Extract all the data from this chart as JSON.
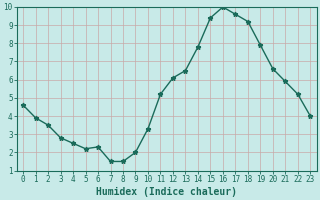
{
  "x": [
    0,
    1,
    2,
    3,
    4,
    5,
    6,
    7,
    8,
    9,
    10,
    11,
    12,
    13,
    14,
    15,
    16,
    17,
    18,
    19,
    20,
    21,
    22,
    23
  ],
  "y": [
    4.6,
    3.9,
    3.5,
    2.8,
    2.5,
    2.2,
    2.3,
    1.5,
    1.5,
    2.0,
    3.3,
    5.2,
    6.1,
    6.5,
    7.8,
    9.4,
    10.0,
    9.6,
    9.2,
    7.9,
    6.6,
    5.9,
    5.2,
    4.0
  ],
  "line_color": "#1a6b5a",
  "marker": "*",
  "marker_size": 3.5,
  "xlabel": "Humidex (Indice chaleur)",
  "bg_color": "#c8eae8",
  "grid_color": "#c8a8a8",
  "xlim": [
    -0.5,
    23.5
  ],
  "ylim": [
    1,
    10
  ],
  "yticks": [
    1,
    2,
    3,
    4,
    5,
    6,
    7,
    8,
    9,
    10
  ],
  "xticks": [
    0,
    1,
    2,
    3,
    4,
    5,
    6,
    7,
    8,
    9,
    10,
    11,
    12,
    13,
    14,
    15,
    16,
    17,
    18,
    19,
    20,
    21,
    22,
    23
  ],
  "tick_fontsize": 5.5,
  "xlabel_fontsize": 7.0,
  "linewidth": 1.0
}
